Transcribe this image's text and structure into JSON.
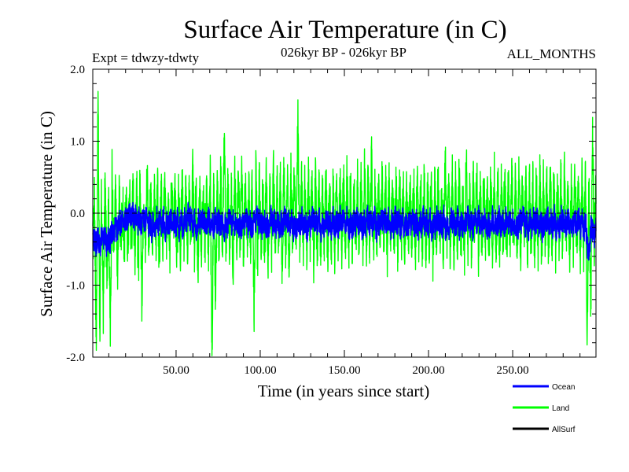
{
  "chart_data": {
    "type": "line",
    "title": "Surface Air Temperature (in C)",
    "subtitle_left": "Expt = tdwzy-tdwty",
    "subtitle_center": "026kyr BP - 026kyr BP",
    "subtitle_right": "ALL_MONTHS",
    "xlabel": "Time (in years since start)",
    "ylabel": "Surface Air Temperature (in C)",
    "xlim": [
      0.5,
      299.5
    ],
    "ylim": [
      -2.0,
      2.0
    ],
    "xticks": [
      50,
      100,
      150,
      200,
      250
    ],
    "xtick_labels": [
      "50.00",
      "100.00",
      "150.00",
      "200.00",
      "250.00"
    ],
    "yticks": [
      -2.0,
      -1.0,
      0.0,
      1.0,
      2.0
    ],
    "ytick_labels": [
      "-2.0",
      "-1.0",
      "0.0",
      "1.0",
      "2.0"
    ],
    "zero_reference_line": true,
    "grid": false,
    "legend_position": "bottom-right, below plot",
    "samples_per_year": 12,
    "series": [
      {
        "name": "Land",
        "color": "#00ff00",
        "values": [
          -0.45,
          0.25,
          -1.85,
          1.6,
          -1.65,
          0.3,
          -1.35,
          0.45,
          -0.85,
          0.2,
          -1.7,
          0.55,
          -0.6,
          0.3,
          -0.9,
          0.25,
          -0.4,
          0.2,
          -0.5,
          0.25,
          -0.5,
          0.3,
          -0.45,
          0.4,
          -0.6,
          0.5,
          -0.9,
          0.5,
          -1.2,
          0.35,
          -0.55,
          0.7,
          -0.5,
          0.25,
          -0.45,
          0.35,
          -0.4,
          0.3,
          -0.8,
          0.4,
          -0.5,
          0.45,
          -0.4,
          0.4,
          -0.5,
          0.5,
          -0.35,
          0.3,
          -0.6,
          0.3,
          -0.5,
          0.45,
          -0.4,
          0.3,
          -0.5,
          0.35,
          -0.35,
          0.55,
          -0.5,
          0.4,
          -0.8,
          0.35,
          -0.5,
          0.3,
          -0.45,
          0.4,
          -0.6,
          0.5,
          -1.95,
          0.4,
          -1.4,
          0.45,
          -0.5,
          0.55,
          -0.45,
          1.0,
          -0.6,
          0.45,
          -0.5,
          0.35,
          -0.75,
          0.5,
          -0.5,
          0.6,
          -0.45,
          0.55,
          -0.6,
          0.4,
          -0.5,
          0.35,
          -0.45,
          0.45,
          -1.3,
          0.6,
          -0.65,
          0.45,
          -0.5,
          0.35,
          -0.6,
          0.55,
          -0.7,
          0.5,
          -0.55,
          0.8,
          -0.5,
          0.5,
          -0.4,
          0.4,
          -0.75,
          0.55,
          -0.5,
          0.45,
          -0.8,
          0.5,
          -0.45,
          0.6,
          -0.5,
          1.35,
          -0.6,
          0.5,
          -0.45,
          0.4,
          -0.55,
          0.45,
          -0.5,
          0.45,
          -0.65,
          0.5,
          -0.55,
          0.4,
          -0.5,
          0.35,
          -0.45,
          0.45,
          -0.7,
          0.5,
          -0.55,
          0.4,
          -0.5,
          0.55,
          -0.6,
          0.45,
          -0.45,
          0.5,
          -0.55,
          0.55,
          -0.5,
          0.4,
          -0.6,
          0.35,
          -0.45,
          0.45,
          -0.65,
          0.55,
          -0.5,
          0.6,
          -0.55,
          0.4,
          -0.5,
          0.8,
          -0.6,
          0.4,
          -0.5,
          0.45,
          -0.45,
          0.5,
          -0.55,
          0.5,
          -0.6,
          0.55,
          -0.5,
          0.4,
          -0.45,
          0.5,
          -0.55,
          0.5,
          -0.5,
          0.45,
          -0.75,
          0.5,
          -0.45,
          0.4,
          -0.5,
          0.45,
          -0.55,
          0.55,
          -0.5,
          0.45,
          -0.6,
          0.55,
          -0.5,
          0.4,
          -0.55,
          0.5,
          -0.6,
          0.45,
          -0.5,
          0.55,
          -0.45,
          0.4,
          -0.55,
          0.8,
          -0.5,
          0.5,
          -0.65,
          0.55,
          -0.5,
          0.45,
          -0.55,
          0.6,
          -0.5,
          0.4,
          -0.6,
          0.75,
          -0.5,
          0.45,
          -0.55,
          0.5,
          -0.45,
          0.55,
          -0.6,
          0.45,
          -0.55,
          0.5,
          -0.45,
          0.45,
          -0.5,
          0.55,
          -0.6,
          0.5,
          -0.5,
          0.45,
          -0.55,
          0.5,
          -0.45,
          0.5,
          -0.6,
          0.4,
          -0.5,
          0.55,
          -0.55,
          0.45,
          -0.5,
          0.45,
          -0.55,
          0.5,
          -0.5,
          0.45,
          -0.6,
          0.5,
          -0.5,
          0.45,
          -0.55,
          0.45,
          -0.5,
          0.5,
          -0.6,
          0.45,
          -0.5,
          0.55,
          -0.55,
          0.5,
          -0.5,
          0.45,
          -0.6,
          0.5,
          -0.5,
          0.55,
          -0.55,
          0.5,
          -0.45,
          0.5,
          -0.6,
          0.45,
          -0.5,
          0.55,
          -0.5,
          0.45,
          -0.6,
          0.5,
          -0.5,
          0.55,
          -1.7,
          0.5,
          -1.5,
          1.2,
          -0.6,
          0.4
        ]
      },
      {
        "name": "Ocean",
        "color": "#0000ff",
        "values": [
          -0.4,
          -0.35,
          -0.45,
          -0.3,
          -0.5,
          -0.35,
          -0.4,
          -0.3,
          -0.45,
          -0.35,
          -0.4,
          -0.25,
          -0.3,
          -0.2,
          -0.25,
          -0.1,
          -0.15,
          -0.1,
          -0.2,
          -0.05,
          -0.1,
          0.0,
          -0.05,
          0.0,
          -0.1,
          0.05,
          -0.15,
          -0.05,
          -0.2,
          0.0,
          -0.15,
          -0.05,
          -0.2,
          -0.1,
          -0.25,
          -0.1,
          -0.2,
          -0.05,
          -0.15,
          -0.1,
          -0.2,
          -0.05,
          -0.25,
          -0.1,
          -0.2,
          -0.05,
          -0.15,
          -0.1,
          -0.2,
          -0.05,
          -0.25,
          -0.1,
          -0.2,
          -0.05,
          -0.15,
          0.0,
          -0.1,
          -0.05,
          -0.2,
          -0.1,
          -0.25,
          -0.1,
          -0.2,
          -0.05,
          -0.15,
          -0.1,
          -0.2,
          -0.05,
          -0.25,
          -0.15,
          -0.2,
          -0.05,
          -0.15,
          -0.1,
          -0.2,
          -0.05,
          -0.25,
          -0.1,
          -0.2,
          -0.05,
          -0.15,
          -0.1,
          -0.2,
          -0.05,
          -0.25,
          -0.15,
          -0.2,
          -0.1,
          -0.15,
          -0.05,
          -0.2,
          -0.1,
          -0.25,
          -0.1,
          -0.2,
          -0.05,
          -0.15,
          -0.1,
          -0.2,
          -0.05,
          -0.25,
          -0.15,
          -0.2,
          -0.05,
          -0.15,
          -0.1,
          -0.2,
          -0.05,
          -0.25,
          -0.1,
          -0.2,
          -0.05,
          -0.15,
          -0.1,
          -0.2,
          -0.05,
          -0.25,
          -0.15,
          -0.2,
          -0.1,
          -0.15,
          -0.05,
          -0.2,
          -0.1,
          -0.25,
          -0.1,
          -0.2,
          -0.05,
          -0.15,
          -0.1,
          -0.2,
          -0.05,
          -0.25,
          -0.15,
          -0.2,
          -0.05,
          -0.15,
          -0.1,
          -0.2,
          -0.05,
          -0.25,
          -0.1,
          -0.2,
          -0.05,
          -0.15,
          -0.1,
          -0.2,
          -0.05,
          -0.25,
          -0.15,
          -0.2,
          -0.1,
          -0.15,
          -0.05,
          -0.2,
          -0.1,
          -0.25,
          -0.1,
          -0.2,
          -0.05,
          -0.15,
          -0.1,
          -0.2,
          -0.05,
          -0.25,
          -0.15,
          -0.2,
          -0.05,
          -0.15,
          -0.1,
          -0.2,
          -0.05,
          -0.25,
          -0.1,
          -0.2,
          -0.05,
          -0.15,
          -0.1,
          -0.2,
          -0.05,
          -0.25,
          -0.15,
          -0.2,
          -0.1,
          -0.15,
          -0.05,
          -0.2,
          -0.1,
          -0.25,
          -0.1,
          -0.2,
          -0.05,
          -0.15,
          -0.1,
          -0.2,
          -0.05,
          -0.25,
          -0.15,
          -0.2,
          -0.05,
          -0.15,
          -0.1,
          -0.2,
          -0.05,
          -0.25,
          -0.1,
          -0.2,
          -0.05,
          -0.15,
          -0.1,
          -0.2,
          -0.05,
          -0.25,
          -0.15,
          -0.2,
          -0.1,
          -0.15,
          -0.05,
          -0.2,
          -0.1,
          -0.25,
          -0.1,
          -0.2,
          -0.05,
          -0.15,
          -0.1,
          -0.2,
          -0.05,
          -0.25,
          -0.15,
          -0.2,
          -0.05,
          -0.15,
          -0.1,
          -0.2,
          -0.05,
          -0.25,
          -0.1,
          -0.2,
          -0.05,
          -0.15,
          -0.1,
          -0.2,
          -0.05,
          -0.25,
          -0.15,
          -0.2,
          -0.1,
          -0.15,
          -0.05,
          -0.2,
          -0.1,
          -0.25,
          -0.1,
          -0.2,
          -0.05,
          -0.15,
          -0.1,
          -0.2,
          -0.05,
          -0.25,
          -0.15,
          -0.2,
          -0.05,
          -0.15,
          -0.1,
          -0.2,
          -0.05,
          -0.25,
          -0.1,
          -0.2,
          -0.05,
          -0.15,
          -0.1,
          -0.2,
          -0.05,
          -0.25,
          -0.15,
          -0.2,
          -0.1,
          -0.15,
          -0.05,
          -0.2,
          -0.1,
          -0.25,
          -0.1,
          -0.45,
          -0.6,
          -0.2,
          -0.25,
          -0.35,
          -0.15
        ]
      },
      {
        "name": "AllSurf",
        "color": "#000000",
        "values": []
      }
    ]
  }
}
